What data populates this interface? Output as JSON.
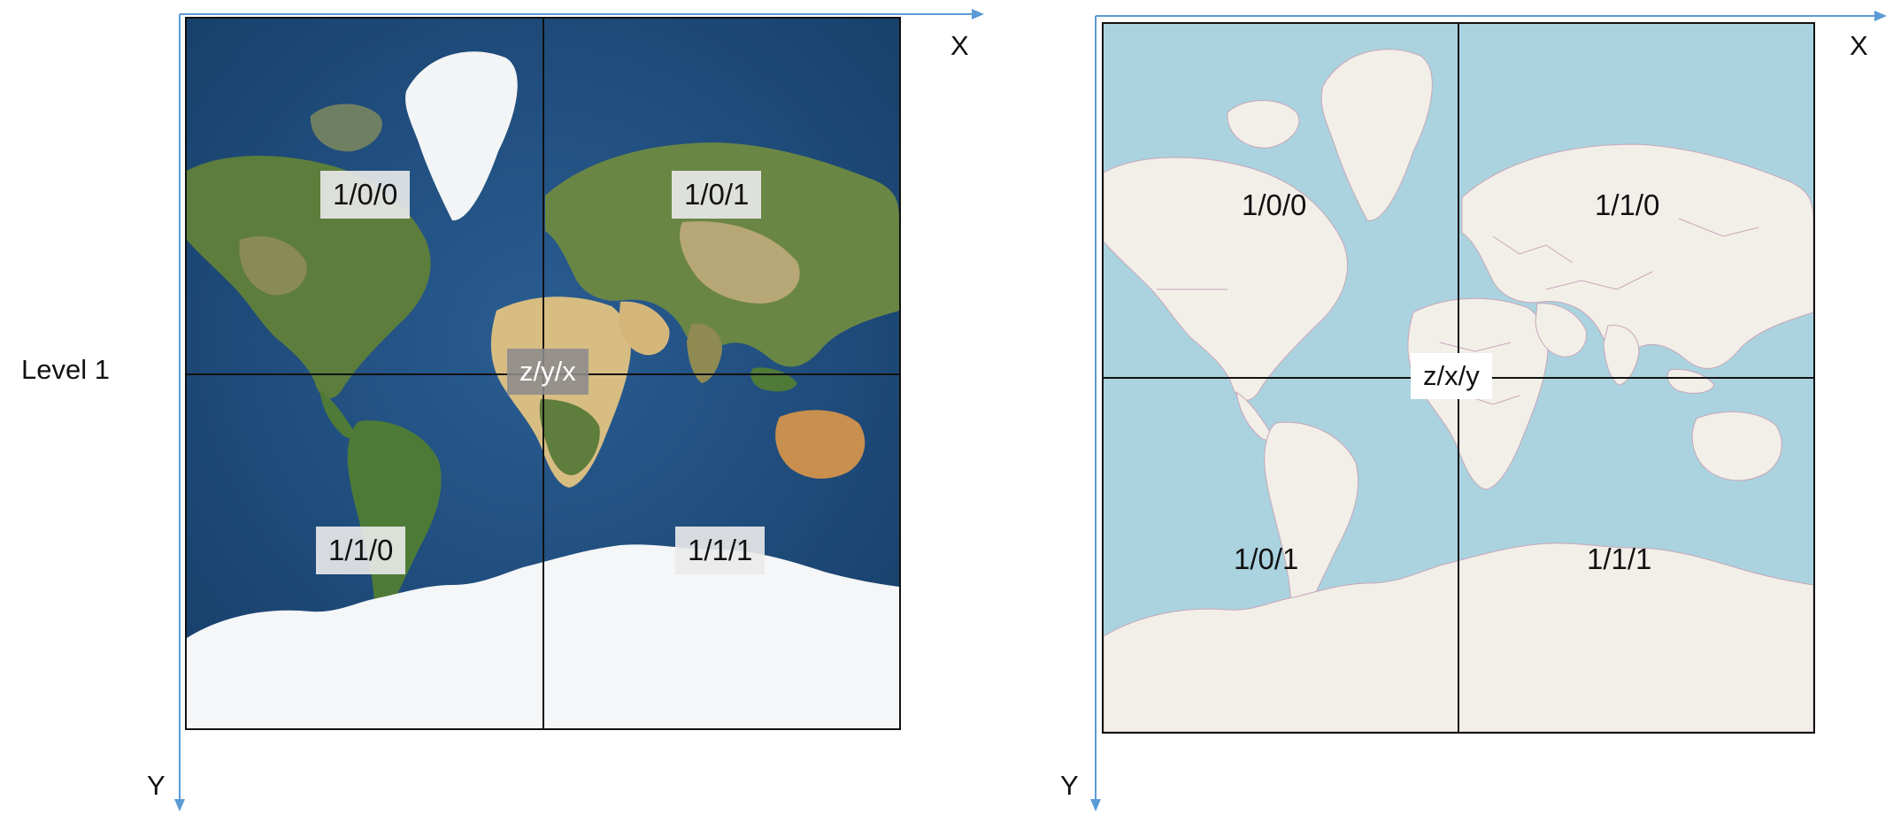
{
  "level_label": "Level 1",
  "left_panel": {
    "style": "satellite",
    "axis_x_label": "X",
    "axis_y_label": "Y",
    "center_label": "z/y/x",
    "tiles": {
      "top_left": "1/0/0",
      "top_right": "1/0/1",
      "bottom_left": "1/1/0",
      "bottom_right": "1/1/1"
    }
  },
  "right_panel": {
    "style": "street-map",
    "axis_x_label": "X",
    "axis_y_label": "Y",
    "center_label": "z/x/y",
    "tiles": {
      "top_left": "1/0/0",
      "top_right": "1/1/0",
      "bottom_left": "1/0/1",
      "bottom_right": "1/1/1"
    }
  },
  "colors": {
    "axis": "#5b9bd5",
    "ocean_satellite": "#1f4f80",
    "land_satellite": "#5a7a3a",
    "desert_satellite": "#d9bf85",
    "ice": "#f5f7f8",
    "ocean_map": "#aad3df",
    "land_map": "#f2efe9",
    "border_map": "#c8a6b8",
    "grid": "#111111"
  }
}
